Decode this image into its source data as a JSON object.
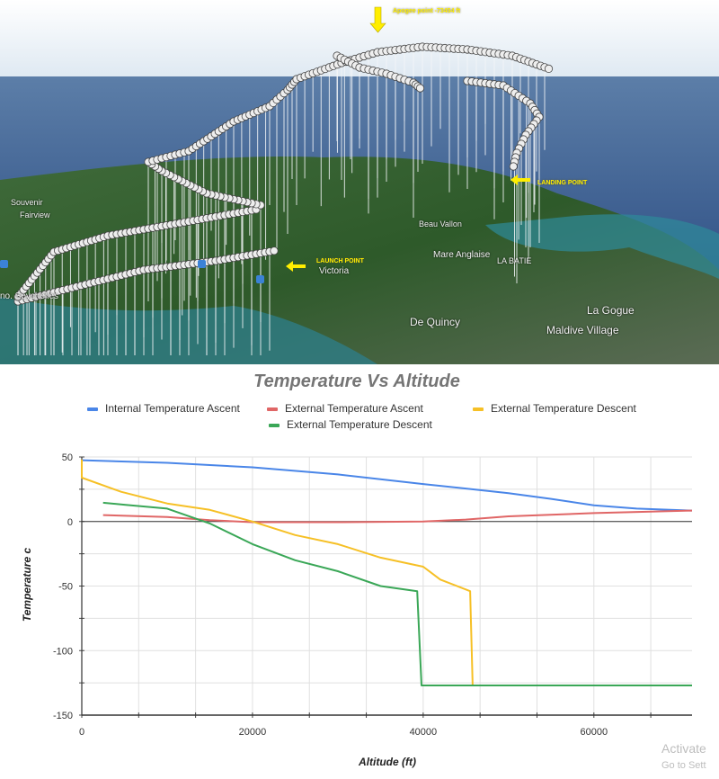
{
  "map": {
    "labels": {
      "apogee": "Apogee point -73454 ft",
      "landing": "LANDING POINT",
      "launch": "LAUNCH POINT",
      "victoria": "Victoria",
      "beau_vallon": "Beau Vallon",
      "mare_anglaise": "Mare Anglaise",
      "la_batie": "LA BATIE",
      "de_quincy": "De Quincy",
      "la_gogue": "La Gogue",
      "maldive_village": "Maldive Village",
      "souvenir": "Souvenir",
      "fairview": "Fairview",
      "seychelles": "no. Seychelles"
    }
  },
  "watermark": {
    "line1": "Activate",
    "line2": "Go to Sett"
  },
  "chart_data": {
    "type": "line",
    "title": "Temperature  Vs Altitude",
    "xlabel": "Altitude  (ft)",
    "ylabel": "Temperature c",
    "xlim": [
      0,
      71500
    ],
    "ylim": [
      -150,
      50
    ],
    "xticks": [
      0,
      20000,
      40000,
      60000
    ],
    "yticks": [
      50,
      0,
      -50,
      -100,
      -150
    ],
    "grid": true,
    "legend_position": "top",
    "series": [
      {
        "name": "Internal Temperature Ascent",
        "color": "#4a86e8",
        "x": [
          0,
          10000,
          20000,
          30000,
          40000,
          50000,
          55000,
          60000,
          65000,
          71500
        ],
        "y": [
          47.5,
          45.5,
          42,
          36.5,
          29,
          22,
          17.5,
          12.6,
          10,
          8.5
        ]
      },
      {
        "name": "External Temperature  Ascent",
        "color": "#e06666",
        "x": [
          2500,
          10000,
          15000,
          20000,
          30000,
          40000,
          45000,
          50000,
          60000,
          71500
        ],
        "y": [
          5,
          3.5,
          1,
          -0.5,
          -0.5,
          0,
          1.5,
          4,
          6.5,
          8.5
        ]
      },
      {
        "name": "External Temperature  Descent",
        "color": "#f6c026",
        "x": [
          0,
          0,
          4600,
          10000,
          15000,
          20000,
          25000,
          30000,
          35000,
          40000,
          42000,
          45500,
          45800
        ],
        "y": [
          48,
          34,
          23,
          14,
          9,
          0,
          -10.5,
          -17.5,
          -28,
          -35,
          -45,
          -54,
          -127
        ]
      },
      {
        "name": "External Temperature Descent",
        "color": "#3aa757",
        "x": [
          2500,
          5000,
          10000,
          15000,
          20000,
          25000,
          30000,
          35000,
          39300,
          39800,
          71500
        ],
        "y": [
          14.5,
          13,
          10,
          -1.5,
          -17.5,
          -30,
          -38.5,
          -50,
          -54,
          -127,
          -127
        ]
      }
    ]
  }
}
